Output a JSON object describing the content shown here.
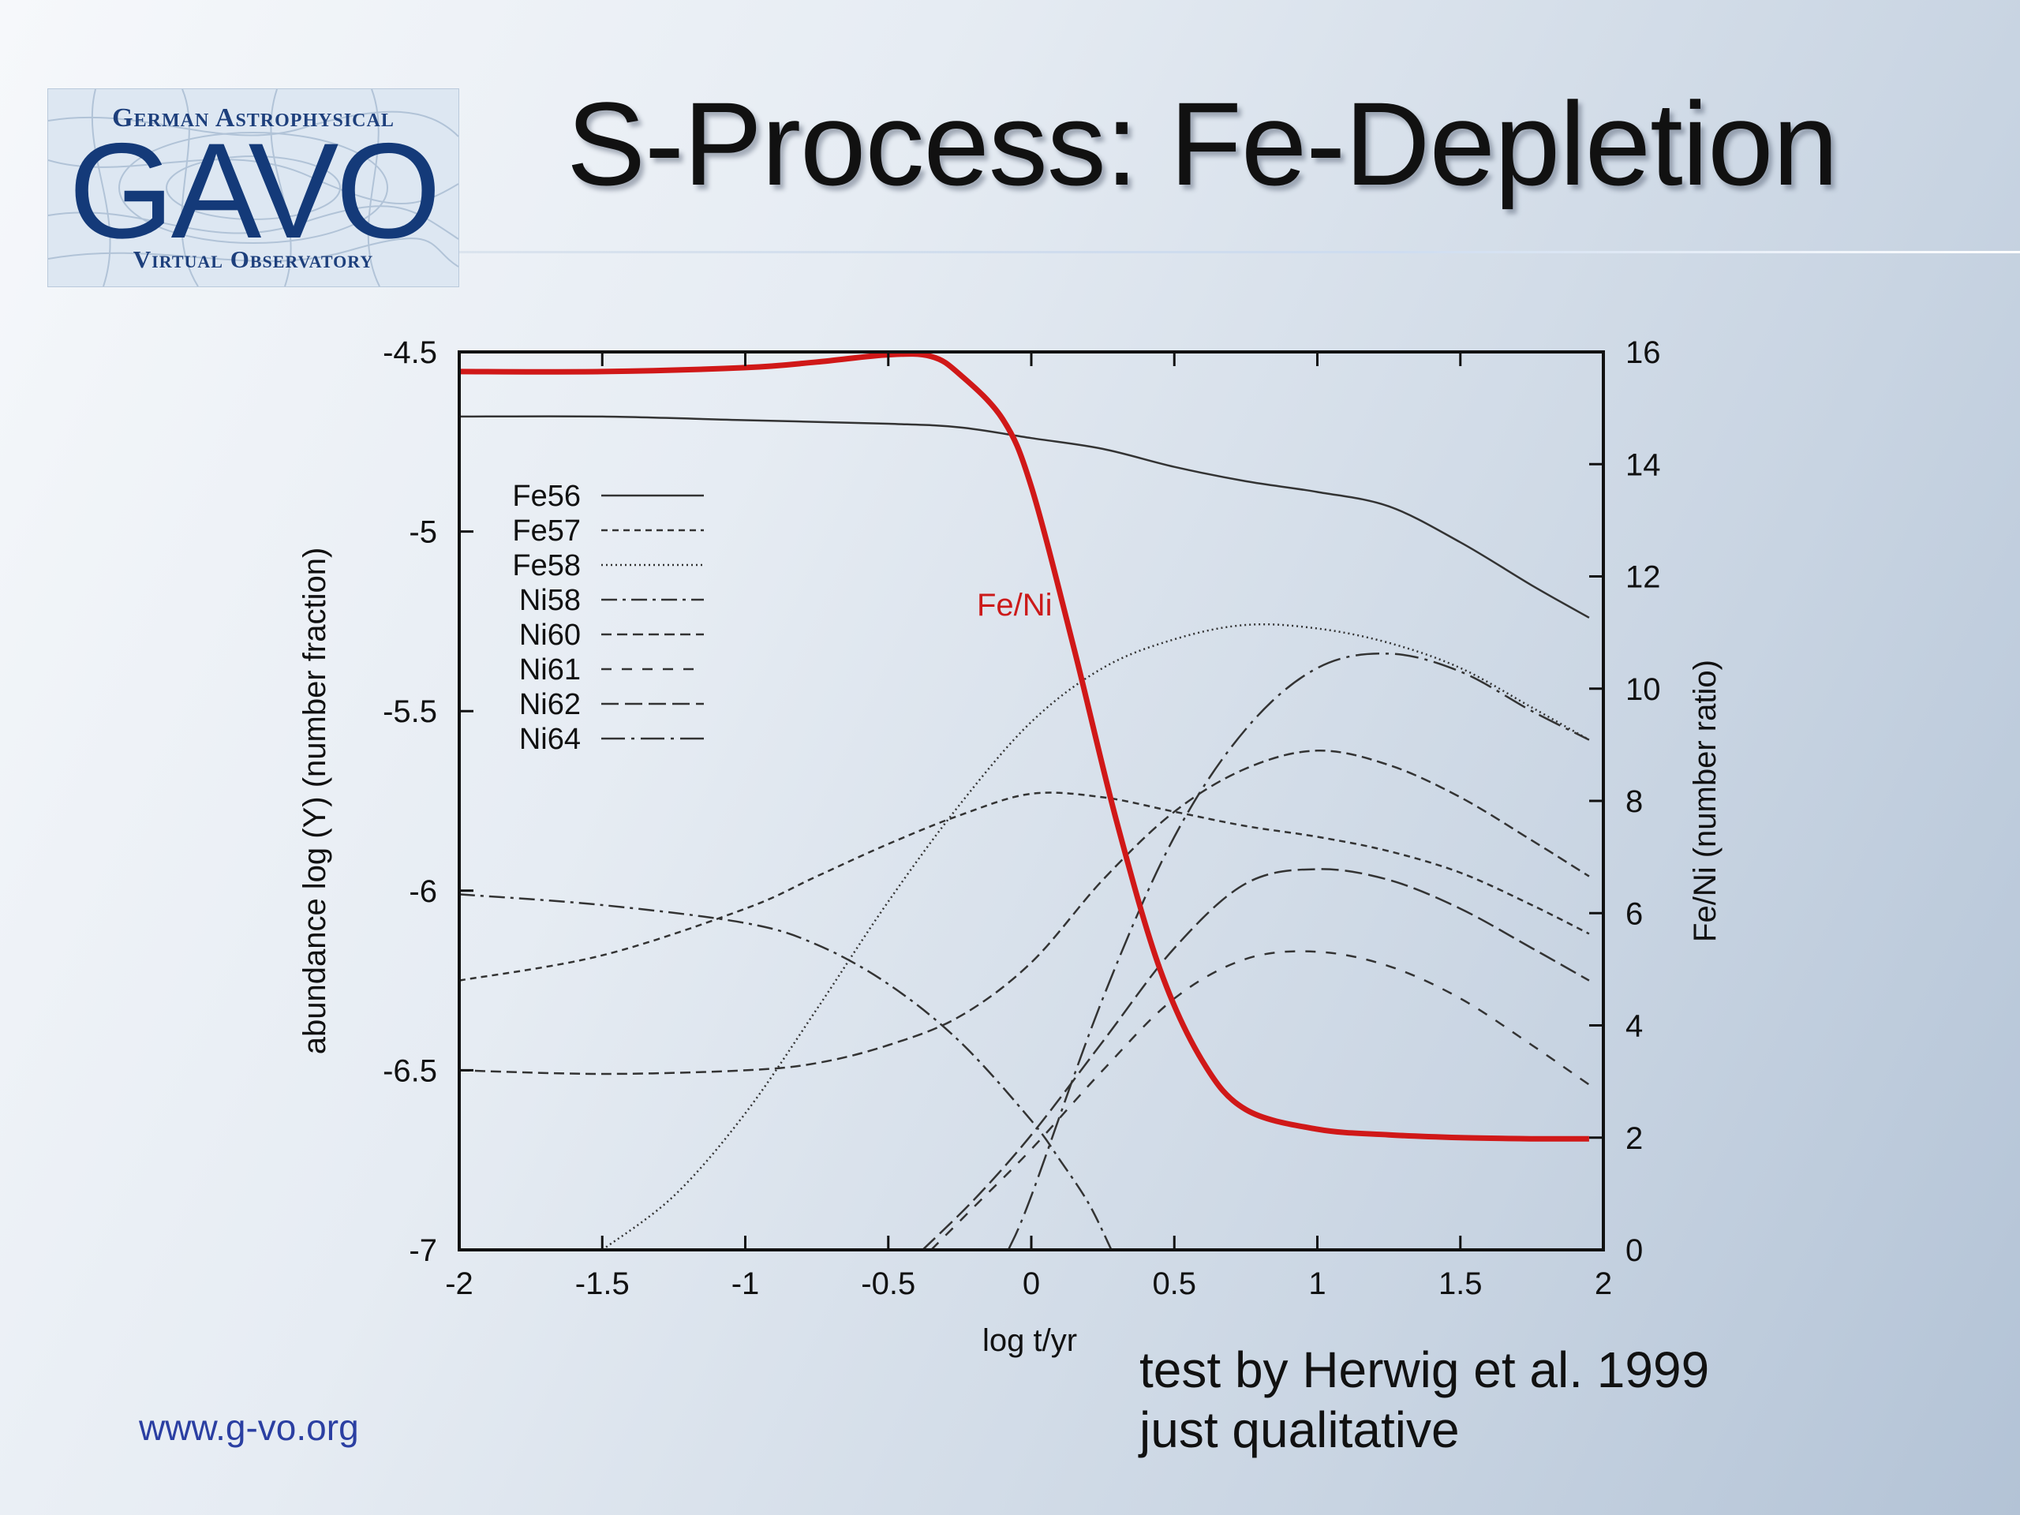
{
  "slide": {
    "title": "S-Process: Fe-Depletion",
    "footer_url": "www.g-vo.org",
    "note_line1": "test by Herwig et al. 1999",
    "note_line2": "just qualitative"
  },
  "logo": {
    "top": "German Astrophysical",
    "main": "GAVO",
    "bottom": "Virtual Observatory"
  },
  "chart_data": {
    "type": "line",
    "xlabel": "log t/yr",
    "ylabel_left": "abundance log (Y) (number fraction)",
    "ylabel_right": "Fe/Ni (number ratio)",
    "xlim": [
      -2,
      2
    ],
    "ylim_left": [
      -7,
      -4.5
    ],
    "ylim_right": [
      0,
      16
    ],
    "x_ticks": [
      "-2",
      "-1.5",
      "-1",
      "-0.5",
      "0",
      "0.5",
      "1",
      "1.5",
      "2"
    ],
    "y_ticks_left": [
      "-4.5",
      "-5",
      "-5.5",
      "-6",
      "-6.5",
      "-7"
    ],
    "y_ticks_right": [
      "16",
      "14",
      "12",
      "10",
      "8",
      "6",
      "4",
      "2",
      "0"
    ],
    "grid": false,
    "legend_position": "upper-left",
    "annotation": "Fe/Ni",
    "series": [
      {
        "name": "Fe56",
        "style": "solid",
        "color": "#333333",
        "axis": "left",
        "x": [
          -2,
          -1.5,
          -1,
          -0.5,
          -0.25,
          0,
          0.25,
          0.5,
          0.75,
          1,
          1.25,
          1.5,
          1.75,
          1.95
        ],
        "y": [
          -4.68,
          -4.68,
          -4.69,
          -4.7,
          -4.71,
          -4.74,
          -4.77,
          -4.82,
          -4.86,
          -4.89,
          -4.93,
          -5.03,
          -5.15,
          -5.24
        ]
      },
      {
        "name": "Fe57",
        "style": "dashed-fine",
        "color": "#333333",
        "axis": "left",
        "x": [
          -2,
          -1.5,
          -1,
          -0.75,
          -0.5,
          -0.25,
          0,
          0.25,
          0.5,
          0.75,
          1,
          1.25,
          1.5,
          1.75,
          1.95
        ],
        "y": [
          -6.25,
          -6.18,
          -6.05,
          -5.96,
          -5.87,
          -5.79,
          -5.73,
          -5.74,
          -5.78,
          -5.82,
          -5.85,
          -5.89,
          -5.95,
          -6.04,
          -6.12
        ]
      },
      {
        "name": "Fe58",
        "style": "dotted",
        "color": "#333333",
        "axis": "left",
        "x": [
          -1.5,
          -1.25,
          -1,
          -0.75,
          -0.5,
          -0.25,
          0,
          0.25,
          0.5,
          0.75,
          1,
          1.25,
          1.5,
          1.75,
          1.95
        ],
        "y": [
          -7.0,
          -6.85,
          -6.62,
          -6.33,
          -6.03,
          -5.76,
          -5.53,
          -5.38,
          -5.3,
          -5.26,
          -5.27,
          -5.31,
          -5.38,
          -5.49,
          -5.58
        ]
      },
      {
        "name": "Ni58",
        "style": "dash-dot",
        "color": "#333333",
        "axis": "left",
        "x": [
          -2,
          -1.5,
          -1,
          -0.75,
          -0.5,
          -0.25,
          0,
          0.1,
          0.2,
          0.28
        ],
        "y": [
          -6.01,
          -6.04,
          -6.09,
          -6.15,
          -6.26,
          -6.42,
          -6.64,
          -6.75,
          -6.87,
          -7.0
        ]
      },
      {
        "name": "Ni60",
        "style": "dashed",
        "color": "#333333",
        "axis": "left",
        "x": [
          -2,
          -1.5,
          -1,
          -0.75,
          -0.5,
          -0.25,
          0,
          0.25,
          0.5,
          0.75,
          1,
          1.25,
          1.5,
          1.75,
          1.95
        ],
        "y": [
          -6.5,
          -6.51,
          -6.5,
          -6.48,
          -6.43,
          -6.35,
          -6.2,
          -5.97,
          -5.78,
          -5.66,
          -5.61,
          -5.65,
          -5.74,
          -5.86,
          -5.96
        ]
      },
      {
        "name": "Ni61",
        "style": "dashed-sparse",
        "color": "#333333",
        "axis": "left",
        "x": [
          -0.35,
          -0.2,
          0,
          0.25,
          0.5,
          0.75,
          1,
          1.25,
          1.5,
          1.75,
          1.95
        ],
        "y": [
          -7.0,
          -6.88,
          -6.72,
          -6.5,
          -6.3,
          -6.19,
          -6.17,
          -6.21,
          -6.3,
          -6.43,
          -6.54
        ]
      },
      {
        "name": "Ni62",
        "style": "long-dash",
        "color": "#333333",
        "axis": "left",
        "x": [
          -0.38,
          -0.2,
          0,
          0.25,
          0.5,
          0.75,
          1,
          1.25,
          1.5,
          1.75,
          1.95
        ],
        "y": [
          -7.0,
          -6.86,
          -6.68,
          -6.42,
          -6.16,
          -5.98,
          -5.94,
          -5.97,
          -6.05,
          -6.16,
          -6.25
        ]
      },
      {
        "name": "Ni64",
        "style": "long-dash-dot",
        "color": "#333333",
        "axis": "left",
        "x": [
          -0.08,
          0,
          0.25,
          0.5,
          0.75,
          1,
          1.25,
          1.5,
          1.75,
          1.95
        ],
        "y": [
          -7.0,
          -6.85,
          -6.3,
          -5.85,
          -5.55,
          -5.38,
          -5.34,
          -5.39,
          -5.5,
          -5.58
        ]
      },
      {
        "name": "Fe/Ni",
        "style": "solid-bold",
        "color": "#d01818",
        "axis": "right",
        "x": [
          -2,
          -1.5,
          -1,
          -0.75,
          -0.5,
          -0.35,
          -0.25,
          -0.1,
          0,
          0.15,
          0.3,
          0.45,
          0.6,
          0.75,
          1,
          1.25,
          1.5,
          1.75,
          1.95
        ],
        "y": [
          15.65,
          15.65,
          15.72,
          15.82,
          15.95,
          15.92,
          15.6,
          14.8,
          13.6,
          10.7,
          7.6,
          5.0,
          3.35,
          2.5,
          2.15,
          2.05,
          2.0,
          1.98,
          1.98
        ]
      }
    ]
  }
}
